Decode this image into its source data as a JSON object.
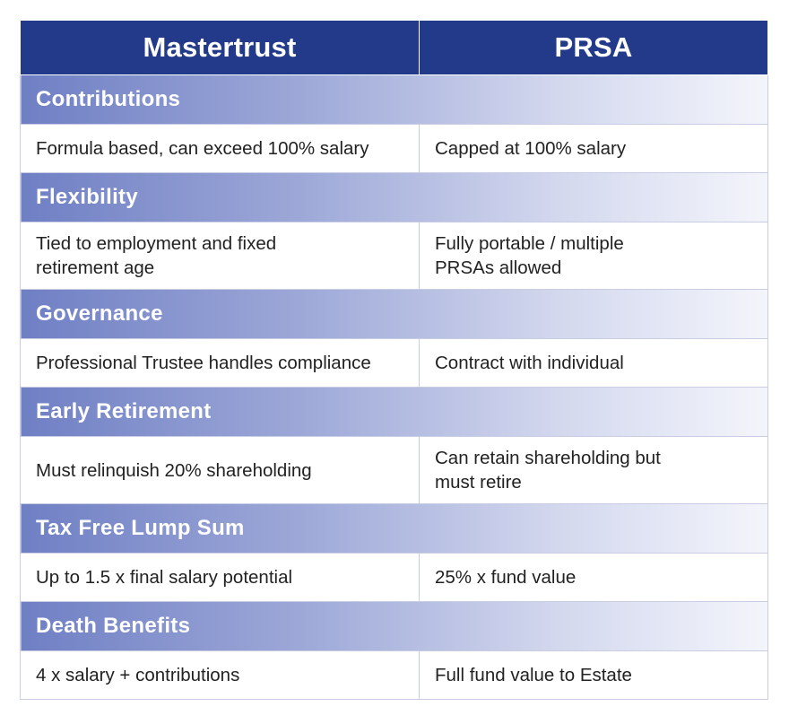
{
  "headers": {
    "col1": "Mastertrust",
    "col2": "PRSA"
  },
  "sections": [
    {
      "title": "Contributions",
      "mastertrust": "Formula based, can exceed 100% salary",
      "prsa": "Capped at 100% salary"
    },
    {
      "title": "Flexibility",
      "mastertrust": "Tied to employment and fixed\nretirement age",
      "prsa": "Fully portable / multiple\nPRSAs allowed"
    },
    {
      "title": "Governance",
      "mastertrust": "Professional Trustee handles compliance",
      "prsa": "Contract with individual"
    },
    {
      "title": "Early Retirement",
      "mastertrust": "Must relinquish 20% shareholding",
      "prsa": "Can retain shareholding but\nmust retire"
    },
    {
      "title": "Tax Free Lump Sum",
      "mastertrust": "Up to 1.5 x final salary potential",
      "prsa": "25% x fund value"
    },
    {
      "title": "Death Benefits",
      "mastertrust": "4 x salary + contributions",
      "prsa": "Full fund value to Estate"
    }
  ]
}
